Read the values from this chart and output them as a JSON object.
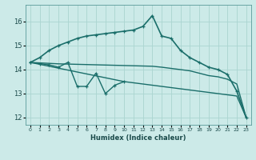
{
  "xlabel": "Humidex (Indice chaleur)",
  "background_color": "#cceae8",
  "grid_color": "#aad4d0",
  "line_color": "#1a6e6a",
  "xlim": [
    -0.5,
    23.5
  ],
  "ylim": [
    11.7,
    16.7
  ],
  "xticks": [
    0,
    1,
    2,
    3,
    4,
    5,
    6,
    7,
    8,
    9,
    10,
    11,
    12,
    13,
    14,
    15,
    16,
    17,
    18,
    19,
    20,
    21,
    22,
    23
  ],
  "yticks": [
    12,
    13,
    14,
    15,
    16
  ],
  "series": [
    {
      "x": [
        0,
        1,
        2,
        3,
        4,
        5,
        6,
        7,
        8,
        9,
        10,
        11,
        12,
        13,
        14,
        15,
        16,
        17,
        18,
        19,
        20,
        21,
        22,
        23
      ],
      "y": [
        14.3,
        14.5,
        14.8,
        15.0,
        15.15,
        15.3,
        15.4,
        15.45,
        15.5,
        15.55,
        15.6,
        15.65,
        15.8,
        16.25,
        15.4,
        15.3,
        14.8,
        14.5,
        14.3,
        14.1,
        14.0,
        13.8,
        13.1,
        12.0
      ],
      "marker": true,
      "linewidth": 1.2
    },
    {
      "x": [
        0,
        1,
        2,
        3,
        4,
        5,
        6,
        7,
        8,
        9,
        10
      ],
      "y": [
        14.3,
        14.25,
        14.2,
        14.1,
        14.3,
        13.3,
        13.3,
        13.85,
        13.0,
        13.35,
        13.5
      ],
      "marker": true,
      "linewidth": 1.0
    },
    {
      "x": [
        0,
        1,
        2,
        3,
        4,
        5,
        6,
        7,
        8,
        9,
        10,
        11,
        12,
        13,
        14,
        15,
        16,
        17,
        18,
        19,
        20,
        21,
        22,
        23
      ],
      "y": [
        14.3,
        14.28,
        14.26,
        14.24,
        14.23,
        14.22,
        14.21,
        14.2,
        14.19,
        14.18,
        14.17,
        14.16,
        14.15,
        14.14,
        14.1,
        14.05,
        14.0,
        13.95,
        13.85,
        13.75,
        13.7,
        13.6,
        13.4,
        12.0
      ],
      "marker": false,
      "linewidth": 1.0
    },
    {
      "x": [
        0,
        1,
        2,
        3,
        4,
        5,
        6,
        7,
        8,
        9,
        10,
        11,
        12,
        13,
        14,
        15,
        16,
        17,
        18,
        19,
        20,
        21,
        22,
        23
      ],
      "y": [
        14.3,
        14.22,
        14.14,
        14.06,
        13.98,
        13.9,
        13.82,
        13.74,
        13.66,
        13.58,
        13.5,
        13.45,
        13.4,
        13.35,
        13.3,
        13.25,
        13.2,
        13.15,
        13.1,
        13.05,
        13.0,
        12.95,
        12.9,
        12.0
      ],
      "marker": false,
      "linewidth": 1.0
    }
  ]
}
